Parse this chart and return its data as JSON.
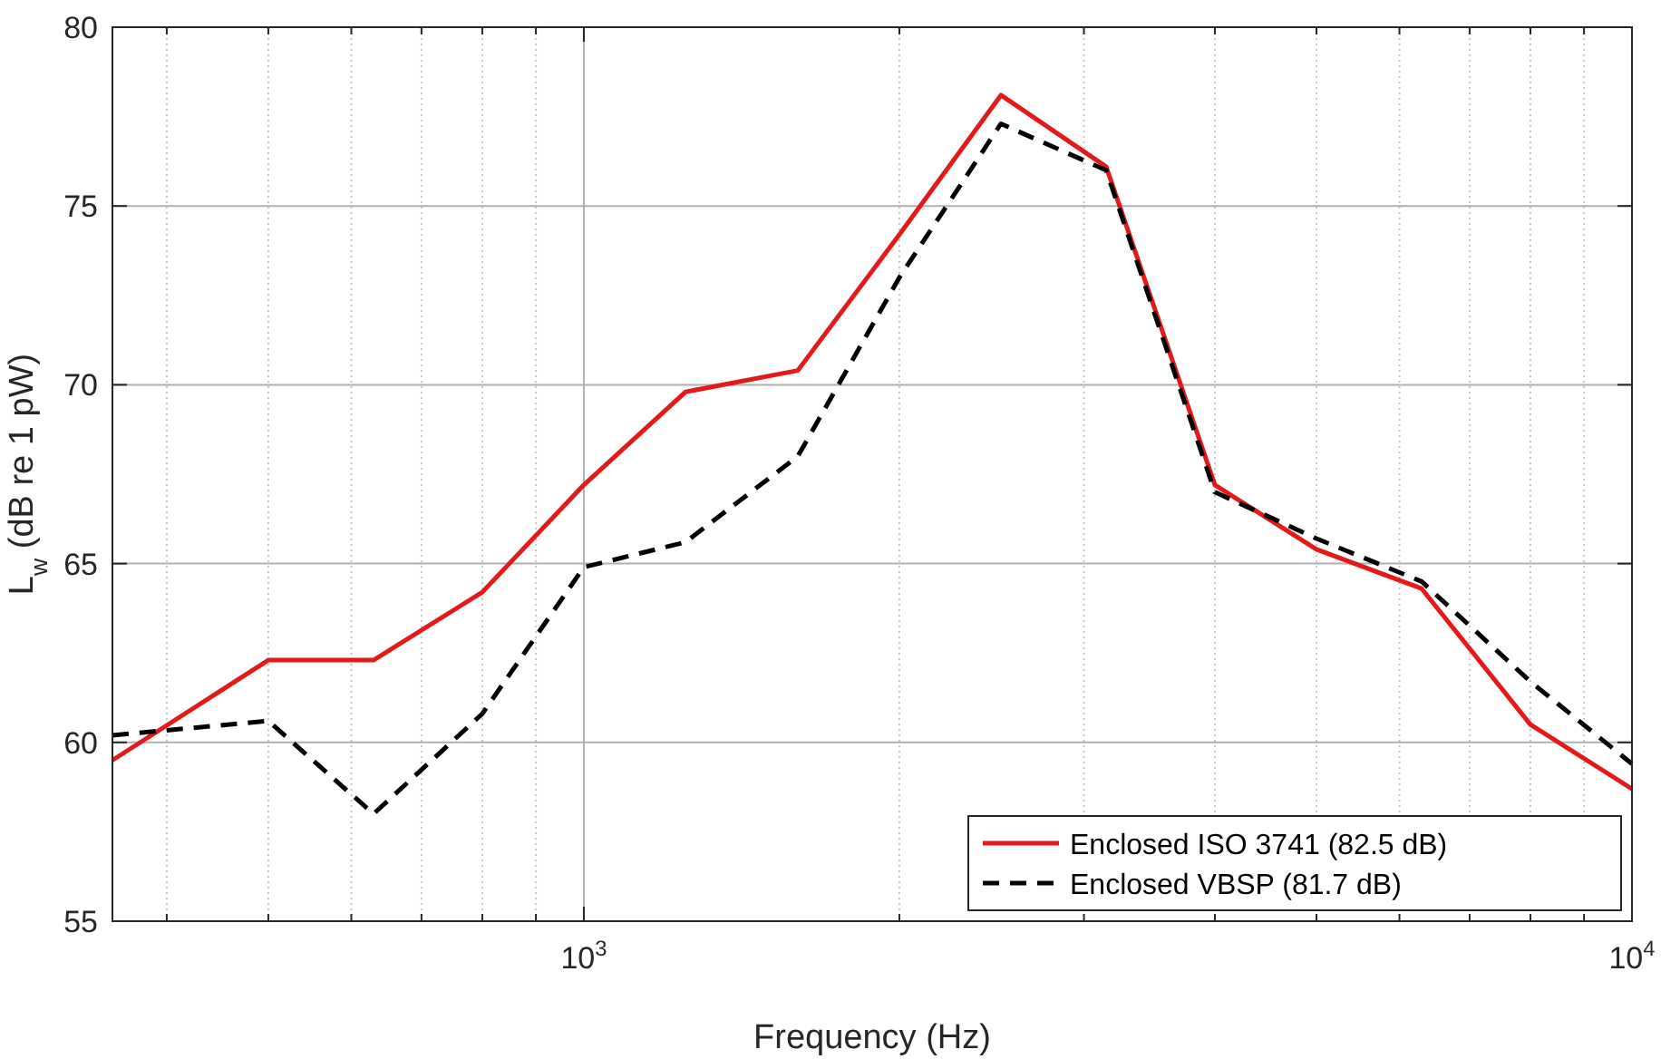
{
  "chart_data": {
    "type": "line",
    "xlabel": "Frequency (Hz)",
    "ylabel": "L$_{w}$ (dB re 1 pW)",
    "log": "x",
    "x": [
      355,
      500,
      630,
      800,
      1000,
      1250,
      1600,
      2000,
      2500,
      3150,
      4000,
      5000,
      6300,
      8000,
      10000
    ],
    "series": [
      {
        "name": "Enclosed ISO 3741 (82.5 dB)",
        "color": "#e31a1c",
        "line_style": "solid",
        "values": [
          59.5,
          62.3,
          62.3,
          64.2,
          67.2,
          69.8,
          70.4,
          74.2,
          78.1,
          76.1,
          67.2,
          65.4,
          64.3,
          60.5,
          58.7
        ]
      },
      {
        "name": "Enclosed VBSP (81.7 dB)",
        "color": "#000000",
        "line_style": "dashed",
        "values": [
          60.2,
          60.6,
          58.0,
          60.8,
          64.9,
          65.6,
          68.0,
          73.0,
          77.3,
          76.0,
          67.0,
          65.7,
          64.5,
          61.7,
          59.4
        ]
      }
    ],
    "xlim": [
      355,
      10000
    ],
    "ylim": [
      55,
      80
    ],
    "xticks": [
      {
        "value": 400,
        "label": null
      },
      {
        "value": 500,
        "label": null
      },
      {
        "value": 600,
        "label": null
      },
      {
        "value": 700,
        "label": null
      },
      {
        "value": 800,
        "label": null
      },
      {
        "value": 900,
        "label": null
      },
      {
        "value": 1000,
        "label": "10$^{3}$"
      },
      {
        "value": 2000,
        "label": null
      },
      {
        "value": 3000,
        "label": null
      },
      {
        "value": 4000,
        "label": null
      },
      {
        "value": 5000,
        "label": null
      },
      {
        "value": 6000,
        "label": null
      },
      {
        "value": 7000,
        "label": null
      },
      {
        "value": 8000,
        "label": null
      },
      {
        "value": 9000,
        "label": null
      },
      {
        "value": 10000,
        "label": "10$^{4}$"
      }
    ],
    "yticks": [
      55,
      60,
      65,
      70,
      75,
      80
    ],
    "grid": true,
    "legend": "bottom right"
  }
}
